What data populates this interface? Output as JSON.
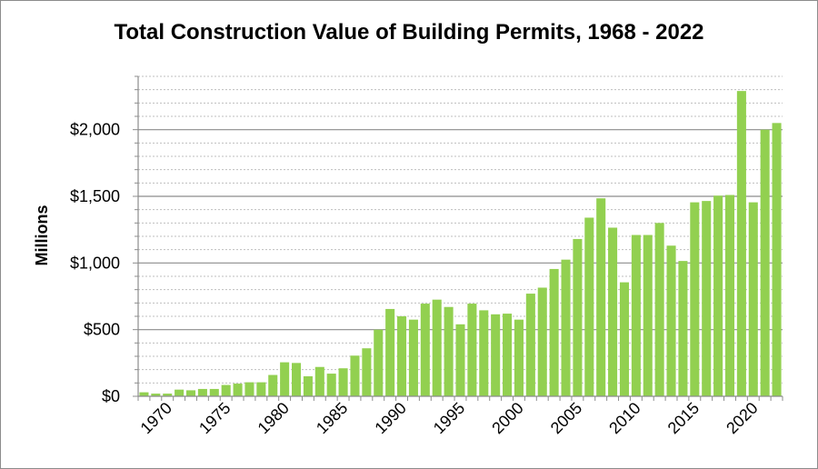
{
  "chart_data": {
    "type": "bar",
    "title": "Total Construction Value of Building Permits, 1968 - 2022",
    "xlabel": "",
    "ylabel": "Millions",
    "ylim": [
      0,
      2400
    ],
    "y_ticks": [
      {
        "value": 0,
        "label": "$0"
      },
      {
        "value": 500,
        "label": "$500"
      },
      {
        "value": 1000,
        "label": "$1,000"
      },
      {
        "value": 1500,
        "label": "$1,500"
      },
      {
        "value": 2000,
        "label": "$2,000"
      }
    ],
    "x_ticks": [
      "1970",
      "1975",
      "1980",
      "1985",
      "1990",
      "1995",
      "2000",
      "2005",
      "2010",
      "2015",
      "2020"
    ],
    "grid": true,
    "minor_grid": true,
    "legend": "none",
    "bar_color": "#92d050",
    "categories": [
      1968,
      1969,
      1970,
      1971,
      1972,
      1973,
      1974,
      1975,
      1976,
      1977,
      1978,
      1979,
      1980,
      1981,
      1982,
      1983,
      1984,
      1985,
      1986,
      1987,
      1988,
      1989,
      1990,
      1991,
      1992,
      1993,
      1994,
      1995,
      1996,
      1997,
      1998,
      1999,
      2000,
      2001,
      2002,
      2003,
      2004,
      2005,
      2006,
      2007,
      2008,
      2009,
      2010,
      2011,
      2012,
      2013,
      2014,
      2015,
      2016,
      2017,
      2018,
      2019,
      2020,
      2021,
      2022
    ],
    "values": [
      30,
      20,
      20,
      50,
      45,
      55,
      55,
      85,
      95,
      105,
      105,
      160,
      255,
      250,
      150,
      220,
      170,
      210,
      305,
      360,
      500,
      655,
      600,
      575,
      695,
      725,
      670,
      540,
      695,
      645,
      615,
      620,
      575,
      770,
      815,
      955,
      1025,
      1180,
      1340,
      1485,
      1265,
      855,
      1210,
      1210,
      1300,
      1130,
      1015,
      1455,
      1465,
      1505,
      1510,
      2290,
      1455,
      2000,
      2050
    ]
  }
}
